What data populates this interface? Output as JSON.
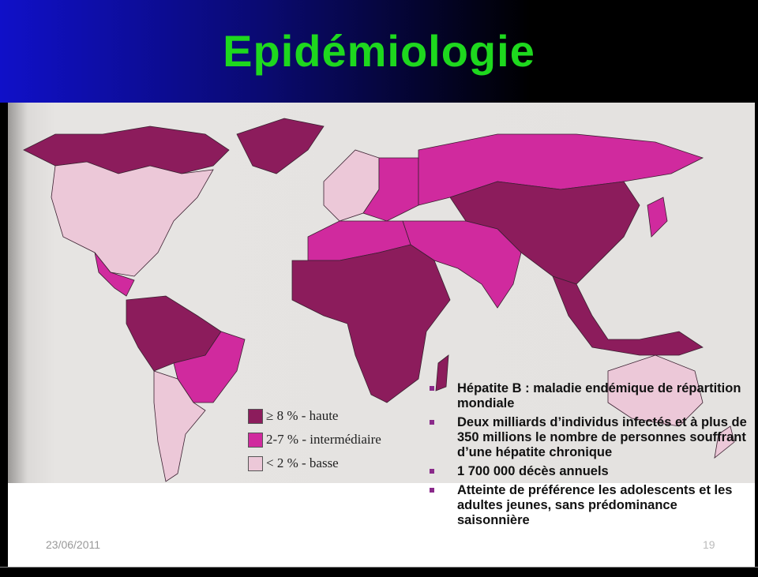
{
  "title": "Epidémiologie",
  "colors": {
    "high": "#8c1c5c",
    "intermediate": "#d02a9e",
    "low": "#ecc8d8",
    "title": "#1ed81e"
  },
  "legend": [
    {
      "label": "≥ 8 % - haute",
      "color": "#8c1c5c"
    },
    {
      "label": "2-7 % - intermédiaire",
      "color": "#d02a9e"
    },
    {
      "label": "< 2 % - basse",
      "color": "#ecc8d8"
    }
  ],
  "bullets": [
    "Hépatite B : maladie endémique  de répartition mondiale",
    "Deux milliards d’individus infectés et à plus de 350 millions le nombre de personnes souffrant d’une hépatite chronique",
    "1 700 000 décès annuels",
    "Atteinte de préférence les adolescents et les adultes jeunes, sans prédominance saisonnière"
  ],
  "footer": {
    "date": "23/06/2011",
    "page": "19"
  }
}
